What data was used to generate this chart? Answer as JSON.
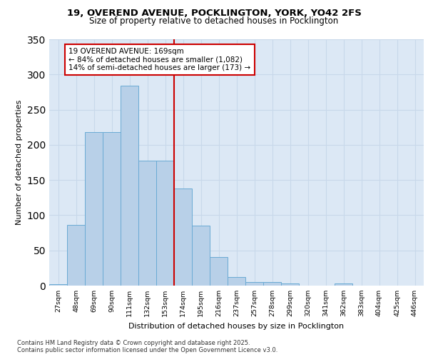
{
  "title_line1": "19, OVEREND AVENUE, POCKLINGTON, YORK, YO42 2FS",
  "title_line2": "Size of property relative to detached houses in Pocklington",
  "xlabel": "Distribution of detached houses by size in Pocklington",
  "ylabel": "Number of detached properties",
  "bin_labels": [
    "27sqm",
    "48sqm",
    "69sqm",
    "90sqm",
    "111sqm",
    "132sqm",
    "153sqm",
    "174sqm",
    "195sqm",
    "216sqm",
    "237sqm",
    "257sqm",
    "278sqm",
    "299sqm",
    "320sqm",
    "341sqm",
    "362sqm",
    "383sqm",
    "404sqm",
    "425sqm",
    "446sqm"
  ],
  "bar_heights": [
    2,
    86,
    218,
    218,
    284,
    178,
    178,
    138,
    85,
    41,
    12,
    5,
    5,
    3,
    0,
    0,
    3,
    0,
    0,
    0,
    0
  ],
  "bar_color": "#b8d0e8",
  "bar_edge_color": "#6aaad4",
  "vline_color": "#cc0000",
  "annotation_title": "19 OVEREND AVENUE: 169sqm",
  "annotation_line2": "← 84% of detached houses are smaller (1,082)",
  "annotation_line3": "14% of semi-detached houses are larger (173) →",
  "annotation_box_color": "#ffffff",
  "annotation_box_edge": "#cc0000",
  "ylim": [
    0,
    350
  ],
  "yticks": [
    0,
    50,
    100,
    150,
    200,
    250,
    300,
    350
  ],
  "grid_color": "#c8d8ea",
  "background_color": "#dce8f5",
  "footer_line1": "Contains HM Land Registry data © Crown copyright and database right 2025.",
  "footer_line2": "Contains public sector information licensed under the Open Government Licence v3.0."
}
